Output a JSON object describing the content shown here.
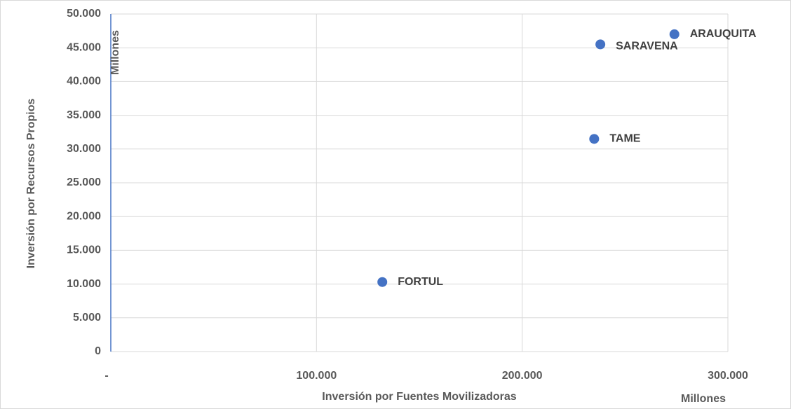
{
  "chart_data": {
    "type": "scatter",
    "x_label": "Inversión por Fuentes Movilizadoras",
    "y_label": "Inversión por Recursos Propios",
    "x_unit": "Millones",
    "y_unit": "Millones",
    "labels": [
      "ARAUQUITA",
      "SARAVENA",
      "TAME",
      "FORTUL"
    ],
    "x": [
      274000,
      238000,
      235000,
      132000
    ],
    "values": [
      47000,
      45500,
      31500,
      10300
    ],
    "color": "#4472c4",
    "xlim": [
      0,
      300000
    ],
    "ylim": [
      0,
      50000
    ],
    "xticks": [
      {
        "value": 0,
        "label": "-"
      },
      {
        "value": 100000,
        "label": "100.000"
      },
      {
        "value": 200000,
        "label": "200.000"
      },
      {
        "value": 300000,
        "label": "300.000"
      }
    ],
    "yticks": [
      0,
      {
        "value": 5000,
        "label": "5.000"
      },
      {
        "value": 10000,
        "label": "10.000"
      },
      {
        "value": 15000,
        "label": "15.000"
      },
      {
        "value": 20000,
        "label": "20.000"
      },
      {
        "value": 25000,
        "label": "25.000"
      },
      {
        "value": 30000,
        "label": "30.000"
      },
      {
        "value": 35000,
        "label": "35.000"
      },
      {
        "value": 40000,
        "label": "40.000"
      },
      {
        "value": 45000,
        "label": "45.000"
      },
      {
        "value": 50000,
        "label": "50.000"
      }
    ],
    "grid": true
  }
}
